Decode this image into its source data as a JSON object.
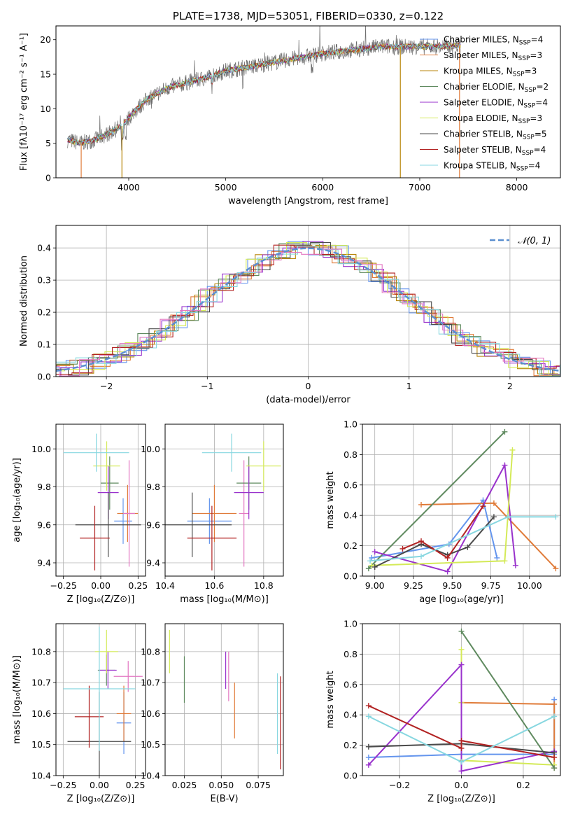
{
  "colors": {
    "Chabrier MILES": "#6495ed",
    "Salpeter MILES": "#e07b39",
    "Kroupa MILES": "#b8860b",
    "Chabrier ELODIE": "#5f8a5f",
    "Salpeter ELODIE": "#9932cc",
    "Kroupa ELODIE": "#d4ea58",
    "Chabrier STELIB": "#4a4a4a",
    "Salpeter STELIB": "#b22222",
    "Kroupa STELIB": "#87d7e0",
    "Pink": "#e377c2",
    "Normal": "#5b8fd0"
  },
  "chart_data": [
    {
      "id": "spectrum",
      "type": "line",
      "title": "PLATE=1738, MJD=53051, FIBERID=0330, z=0.122",
      "xlabel": "wavelength [Angstrom, rest frame]",
      "ylabel": "Flux [fλ10⁻¹⁷ erg cm⁻² s⁻¹ A⁻¹]",
      "xlim": [
        3250,
        8450
      ],
      "ylim": [
        0,
        22
      ],
      "xticks": [
        "4000",
        "5000",
        "6000",
        "7000",
        "8000"
      ],
      "yticks": [
        "0",
        "5",
        "10",
        "15",
        "20"
      ],
      "continuum": [
        [
          3370,
          5.5
        ],
        [
          3500,
          5.0
        ],
        [
          3650,
          5.5
        ],
        [
          3800,
          6.5
        ],
        [
          3930,
          7.5
        ],
        [
          4050,
          9.5
        ],
        [
          4200,
          11.5
        ],
        [
          4400,
          13.0
        ],
        [
          4600,
          13.8
        ],
        [
          4800,
          14.5
        ],
        [
          5000,
          15.5
        ],
        [
          5300,
          16.2
        ],
        [
          5600,
          17.0
        ],
        [
          6000,
          18.0
        ],
        [
          6300,
          18.5
        ],
        [
          6600,
          19.0
        ],
        [
          6900,
          19.0
        ],
        [
          7200,
          19.0
        ],
        [
          7420,
          19.2
        ]
      ],
      "legend": [
        {
          "name": "Chabrier MILES",
          "nssp": "4"
        },
        {
          "name": "Salpeter MILES",
          "nssp": "3"
        },
        {
          "name": "Kroupa MILES",
          "nssp": "3"
        },
        {
          "name": "Chabrier ELODIE",
          "nssp": "2"
        },
        {
          "name": "Salpeter ELODIE",
          "nssp": "4"
        },
        {
          "name": "Kroupa ELODIE",
          "nssp": "3"
        },
        {
          "name": "Chabrier STELIB",
          "nssp": "5"
        },
        {
          "name": "Salpeter STELIB",
          "nssp": "4"
        },
        {
          "name": "Kroupa STELIB",
          "nssp": "4"
        }
      ]
    },
    {
      "id": "residuals",
      "type": "bar",
      "xlabel": "(data-model)/error",
      "ylabel": "Normed distribution",
      "xlim": [
        -2.5,
        2.5
      ],
      "ylim": [
        0,
        0.47
      ],
      "xticks": [
        "−2",
        "−1",
        "0",
        "1",
        "2"
      ],
      "yticks": [
        "0.0",
        "0.1",
        "0.2",
        "0.3",
        "0.4"
      ],
      "legend": "𝒩(0, 1)"
    },
    {
      "id": "age_vs_Z",
      "type": "scatter",
      "xlabel": "Z [log₁₀(Z/Z⊙)]",
      "ylabel": "age  [log₁₀(age/yr)]",
      "xlim": [
        -0.3,
        0.3
      ],
      "ylim": [
        9.33,
        10.13
      ],
      "xticks": [
        "−0.25",
        "0.00",
        "0.25"
      ],
      "yticks": [
        "9.4",
        "9.6",
        "9.8",
        "10.0"
      ],
      "points": [
        {
          "model": "Chabrier MILES",
          "x": 0.15,
          "y": 9.62,
          "xerr": 0.06,
          "yerr": 0.12
        },
        {
          "model": "Salpeter MILES",
          "x": 0.18,
          "y": 9.66,
          "xerr": 0.07,
          "yerr": 0.15
        },
        {
          "model": "Pink",
          "x": 0.19,
          "y": 9.66,
          "xerr": 0.04,
          "yerr": 0.28
        },
        {
          "model": "Chabrier ELODIE",
          "x": 0.06,
          "y": 9.82,
          "xerr": 0.06,
          "yerr": 0.14
        },
        {
          "model": "Salpeter ELODIE",
          "x": 0.05,
          "y": 9.77,
          "xerr": 0.07,
          "yerr": 0.14
        },
        {
          "model": "Kroupa ELODIE",
          "x": 0.04,
          "y": 9.91,
          "xerr": 0.09,
          "yerr": 0.13
        },
        {
          "model": "Chabrier STELIB",
          "x": 0.05,
          "y": 9.6,
          "xerr": 0.22,
          "yerr": 0.17
        },
        {
          "model": "Salpeter STELIB",
          "x": -0.04,
          "y": 9.53,
          "xerr": 0.1,
          "yerr": 0.17
        },
        {
          "model": "Kroupa STELIB",
          "x": -0.03,
          "y": 9.98,
          "xerr": 0.22,
          "yerr": 0.1
        }
      ]
    },
    {
      "id": "age_vs_mass",
      "type": "scatter",
      "xlabel": "mass [log₁₀(M/M⊙)]",
      "xlim": [
        10.4,
        10.88
      ],
      "ylim": [
        9.33,
        10.13
      ],
      "xticks": [
        "10.4",
        "10.6",
        "10.8"
      ],
      "yticks": [
        "9.4",
        "9.6",
        "9.8",
        "10.0"
      ],
      "points": [
        {
          "model": "Chabrier MILES",
          "x": 10.58,
          "y": 9.62,
          "xerr": 0.09,
          "yerr": 0.12
        },
        {
          "model": "Salpeter MILES",
          "x": 10.6,
          "y": 9.66,
          "xerr": 0.09,
          "yerr": 0.15
        },
        {
          "model": "Pink",
          "x": 10.72,
          "y": 9.66,
          "xerr": 0.02,
          "yerr": 0.28
        },
        {
          "model": "Chabrier ELODIE",
          "x": 10.74,
          "y": 9.82,
          "xerr": 0.05,
          "yerr": 0.14
        },
        {
          "model": "Salpeter ELODIE",
          "x": 10.74,
          "y": 9.77,
          "xerr": 0.06,
          "yerr": 0.14
        },
        {
          "model": "Kroupa ELODIE",
          "x": 10.8,
          "y": 9.91,
          "xerr": 0.07,
          "yerr": 0.13
        },
        {
          "model": "Chabrier STELIB",
          "x": 10.51,
          "y": 9.6,
          "xerr": 0.16,
          "yerr": 0.17
        },
        {
          "model": "Salpeter STELIB",
          "x": 10.59,
          "y": 9.53,
          "xerr": 0.1,
          "yerr": 0.17
        },
        {
          "model": "Kroupa STELIB",
          "x": 10.67,
          "y": 9.98,
          "xerr": 0.12,
          "yerr": 0.1
        }
      ]
    },
    {
      "id": "weight_vs_age",
      "type": "line",
      "xlabel": "age  [log₁₀(age/yr)]",
      "ylabel": "mass weight",
      "xlim": [
        8.92,
        10.2
      ],
      "ylim": [
        0,
        1
      ],
      "xticks": [
        "9.00",
        "9.25",
        "9.50",
        "9.75",
        "10.00"
      ],
      "yticks": [
        "0.0",
        "0.2",
        "0.4",
        "0.6",
        "0.8",
        "1.0"
      ],
      "series": [
        {
          "model": "Chabrier MILES",
          "x": [
            8.98,
            9.48,
            9.7,
            9.79
          ],
          "y": [
            0.12,
            0.21,
            0.5,
            0.12
          ]
        },
        {
          "model": "Salpeter MILES",
          "x": [
            9.3,
            9.77,
            10.17
          ],
          "y": [
            0.47,
            0.48,
            0.05
          ]
        },
        {
          "model": "Chabrier ELODIE",
          "x": [
            8.96,
            9.84
          ],
          "y": [
            0.05,
            0.95
          ]
        },
        {
          "model": "Salpeter ELODIE",
          "x": [
            9.0,
            9.47,
            9.84,
            9.91
          ],
          "y": [
            0.16,
            0.03,
            0.73,
            0.07
          ]
        },
        {
          "model": "Kroupa ELODIE",
          "x": [
            8.98,
            9.84,
            9.89
          ],
          "y": [
            0.07,
            0.1,
            0.83
          ]
        },
        {
          "model": "Chabrier STELIB",
          "x": [
            9.0,
            9.3,
            9.47,
            9.6,
            9.77
          ],
          "y": [
            0.06,
            0.21,
            0.14,
            0.19,
            0.39
          ]
        },
        {
          "model": "Salpeter STELIB",
          "x": [
            9.18,
            9.3,
            9.47,
            9.7
          ],
          "y": [
            0.18,
            0.23,
            0.12,
            0.46
          ]
        },
        {
          "model": "Kroupa STELIB",
          "x": [
            8.97,
            9.3,
            9.86,
            10.17
          ],
          "y": [
            0.1,
            0.13,
            0.39,
            0.39
          ]
        }
      ]
    },
    {
      "id": "mass_vs_Z",
      "type": "scatter",
      "xlabel": "Z [log₁₀(Z/Z⊙)]",
      "ylabel": "mass [log₁₀(M/M⊙)]",
      "xlim": [
        -0.3,
        0.32
      ],
      "ylim": [
        10.4,
        10.89
      ],
      "xticks": [
        "−0.25",
        "0.00",
        "0.25"
      ],
      "yticks": [
        "10.4",
        "10.5",
        "10.6",
        "10.7",
        "10.8"
      ],
      "points": [
        {
          "model": "Chabrier MILES",
          "x": 0.17,
          "y": 10.57,
          "xerr": 0.05,
          "yerr": 0.1
        },
        {
          "model": "Salpeter MILES",
          "x": 0.17,
          "y": 10.6,
          "xerr": 0.05,
          "yerr": 0.09
        },
        {
          "model": "Pink",
          "x": 0.2,
          "y": 10.72,
          "xerr": 0.1,
          "yerr": 0.05
        },
        {
          "model": "Chabrier ELODIE",
          "x": 0.05,
          "y": 10.74,
          "xerr": 0.06,
          "yerr": 0.05
        },
        {
          "model": "Salpeter ELODIE",
          "x": 0.06,
          "y": 10.74,
          "xerr": 0.06,
          "yerr": 0.06
        },
        {
          "model": "Kroupa ELODIE",
          "x": 0.05,
          "y": 10.8,
          "xerr": 0.08,
          "yerr": 0.07
        },
        {
          "model": "Chabrier STELIB",
          "x": 0.0,
          "y": 10.51,
          "xerr": 0.22,
          "yerr": 0.16
        },
        {
          "model": "Salpeter STELIB",
          "x": -0.07,
          "y": 10.59,
          "xerr": 0.1,
          "yerr": 0.1
        },
        {
          "model": "Kroupa STELIB",
          "x": 0.0,
          "y": 10.68,
          "xerr": 0.25,
          "yerr": 0.2
        }
      ]
    },
    {
      "id": "mass_vs_ebv",
      "type": "scatter",
      "xlabel": "E(B-V)",
      "xlim": [
        0.012,
        0.092
      ],
      "ylim": [
        10.4,
        10.89
      ],
      "xticks": [
        "0.025",
        "0.050",
        "0.075"
      ],
      "yticks": [
        "10.4",
        "10.5",
        "10.6",
        "10.7",
        "10.8"
      ],
      "points": [
        {
          "model": "Kroupa ELODIE",
          "x": 0.015,
          "y": 10.8,
          "yerr": 0.07
        },
        {
          "model": "Chabrier ELODIE",
          "x": 0.025,
          "y": 10.71,
          "yerr": 0.075
        },
        {
          "model": "Salpeter ELODIE",
          "x": 0.053,
          "y": 10.74,
          "yerr": 0.06
        },
        {
          "model": "Pink",
          "x": 0.055,
          "y": 10.72,
          "yerr": 0.08
        },
        {
          "model": "Salpeter MILES",
          "x": 0.059,
          "y": 10.61,
          "yerr": 0.09
        },
        {
          "model": "Kroupa STELIB",
          "x": 0.088,
          "y": 10.6,
          "yerr": 0.13
        },
        {
          "model": "Salpeter STELIB",
          "x": 0.09,
          "y": 10.57,
          "yerr": 0.15
        }
      ]
    },
    {
      "id": "weight_vs_Z",
      "type": "line",
      "xlabel": "Z [log₁₀(Z/Z⊙)]",
      "ylabel": "mass weight",
      "xlim": [
        -0.32,
        0.32
      ],
      "ylim": [
        0,
        1
      ],
      "xticks": [
        "−0.2",
        "0.0",
        "0.2"
      ],
      "yticks": [
        "0.0",
        "0.2",
        "0.4",
        "0.6",
        "0.8",
        "1.0"
      ],
      "series": [
        {
          "model": "Chabrier MILES",
          "x": [
            -0.3,
            0.0,
            0.3,
            0.3
          ],
          "y": [
            0.12,
            0.14,
            0.14,
            0.5
          ]
        },
        {
          "model": "Salpeter MILES",
          "x": [
            0.0,
            0.3,
            0.3
          ],
          "y": [
            0.48,
            0.47,
            0.05
          ]
        },
        {
          "model": "Kroupa ELODIE",
          "x": [
            0.0,
            0.0,
            0.0,
            0.3
          ],
          "y": [
            0.83,
            0.48,
            0.1,
            0.07
          ]
        },
        {
          "model": "Salpeter ELODIE",
          "x": [
            -0.3,
            0.0,
            0.0,
            0.3
          ],
          "y": [
            0.07,
            0.73,
            0.03,
            0.16
          ]
        },
        {
          "model": "Chabrier ELODIE",
          "x": [
            0.0,
            0.3
          ],
          "y": [
            0.95,
            0.05
          ]
        },
        {
          "model": "Chabrier STELIB",
          "x": [
            -0.3,
            0.0,
            0.3
          ],
          "y": [
            0.19,
            0.21,
            0.15
          ]
        },
        {
          "model": "Salpeter STELIB",
          "x": [
            -0.3,
            0.0,
            0.0,
            0.3
          ],
          "y": [
            0.46,
            0.18,
            0.23,
            0.12
          ]
        },
        {
          "model": "Kroupa STELIB",
          "x": [
            -0.3,
            0.0,
            0.3
          ],
          "y": [
            0.39,
            0.09,
            0.39
          ]
        }
      ]
    }
  ]
}
